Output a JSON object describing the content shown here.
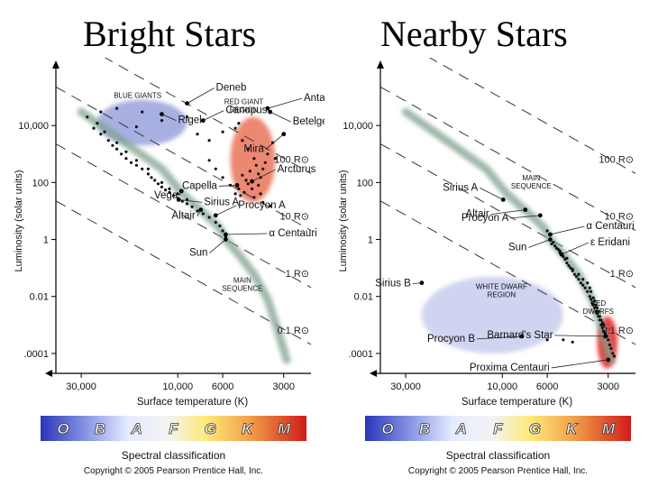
{
  "panels": [
    {
      "title": "Bright Stars"
    },
    {
      "title": "Nearby Stars"
    }
  ],
  "chart_data": [
    {
      "type": "scatter",
      "title": "Bright Stars",
      "xlabel": "Surface temperature (K)",
      "ylabel": "Luminosity (solar units)",
      "x_scale": "log-reversed",
      "y_scale": "log",
      "xlim": [
        40000,
        2200
      ],
      "ylim": [
        2e-05,
        1000000
      ],
      "x_ticks": [
        {
          "value": 30000,
          "label": "30,000"
        },
        {
          "value": 10000,
          "label": "10,000"
        },
        {
          "value": 6000,
          "label": "6000"
        },
        {
          "value": 3000,
          "label": "3000"
        }
      ],
      "y_ticks": [
        {
          "value": 10000,
          "label": "10,000"
        },
        {
          "value": 100,
          "label": "100"
        },
        {
          "value": 1,
          "label": "1"
        },
        {
          "value": 0.01,
          "label": "0.01"
        },
        {
          "value": 0.0001,
          "label": ".0001"
        }
      ],
      "radius_lines": [
        {
          "label": "100 R⊙",
          "r": 100
        },
        {
          "label": "10 R⊙",
          "r": 10
        },
        {
          "label": "1 R⊙",
          "r": 1
        },
        {
          "label": "0.1 R⊙",
          "r": 0.1
        }
      ],
      "regions": [
        {
          "label": "BLUE GIANTS",
          "color": "#9aa3dd",
          "x": [
            25000,
            9000
          ],
          "y": [
            2000,
            80000
          ]
        },
        {
          "label": "RED GIANT REGION",
          "color": "#e9735a",
          "x": [
            5500,
            3300
          ],
          "y": [
            20,
            20000
          ]
        }
      ],
      "region_labels": [
        "BLUE GIANTS",
        "RED GIANT\nREGION"
      ],
      "sequence_label": "MAIN\nSEQUENCE",
      "stars": [
        {
          "name": "Deneb",
          "x": 9000,
          "y": 60000
        },
        {
          "name": "Rigel",
          "x": 12000,
          "y": 25000
        },
        {
          "name": "Canopus",
          "x": 7500,
          "y": 15000
        },
        {
          "name": "Antares",
          "x": 3600,
          "y": 40000
        },
        {
          "name": "Betelgeuse",
          "x": 3500,
          "y": 30000
        },
        {
          "name": "Mira",
          "x": 3000,
          "y": 5000
        },
        {
          "name": "Capella",
          "x": 5100,
          "y": 80
        },
        {
          "name": "Arcturus",
          "x": 4300,
          "y": 110
        },
        {
          "name": "Vega",
          "x": 9600,
          "y": 50
        },
        {
          "name": "Sirius A",
          "x": 9900,
          "y": 25
        },
        {
          "name": "Altair",
          "x": 7700,
          "y": 11
        },
        {
          "name": "Procyon A",
          "x": 6500,
          "y": 7
        },
        {
          "name": "α Centauri",
          "x": 5800,
          "y": 1.5
        },
        {
          "name": "Sun",
          "x": 5800,
          "y": 1
        }
      ],
      "points": [
        [
          28000,
          20000
        ],
        [
          26000,
          8000
        ],
        [
          24000,
          5000
        ],
        [
          22000,
          3000
        ],
        [
          21000,
          2000
        ],
        [
          20000,
          1500
        ],
        [
          19000,
          1000
        ],
        [
          18000,
          700
        ],
        [
          17000,
          500
        ],
        [
          16000,
          400
        ],
        [
          15000,
          300
        ],
        [
          14000,
          200
        ],
        [
          13500,
          150
        ],
        [
          13000,
          120
        ],
        [
          12500,
          90
        ],
        [
          12000,
          70
        ],
        [
          11500,
          55
        ],
        [
          11000,
          45
        ],
        [
          10500,
          35
        ],
        [
          10000,
          28
        ],
        [
          9500,
          22
        ],
        [
          9000,
          18
        ],
        [
          8500,
          14
        ],
        [
          8000,
          10
        ],
        [
          7500,
          8
        ],
        [
          7000,
          6
        ],
        [
          6500,
          4
        ],
        [
          6200,
          3
        ],
        [
          6000,
          2
        ],
        [
          5800,
          1.2
        ],
        [
          25000,
          12000
        ],
        [
          23000,
          6000
        ],
        [
          20000,
          2500
        ],
        [
          18000,
          1200
        ],
        [
          16000,
          600
        ],
        [
          14000,
          300
        ],
        [
          12000,
          100
        ],
        [
          11000,
          60
        ],
        [
          10000,
          40
        ],
        [
          9000,
          25
        ],
        [
          24000,
          30000
        ],
        [
          20000,
          40000
        ],
        [
          15000,
          30000
        ],
        [
          9000,
          20000
        ],
        [
          8000,
          5000
        ],
        [
          7000,
          3000
        ],
        [
          6000,
          6000
        ],
        [
          5200,
          8000
        ],
        [
          5000,
          12000
        ],
        [
          4800,
          3000
        ],
        [
          4500,
          1500
        ],
        [
          4200,
          700
        ],
        [
          4100,
          400
        ],
        [
          4000,
          200
        ],
        [
          3900,
          150
        ],
        [
          3800,
          300
        ],
        [
          3700,
          500
        ],
        [
          4400,
          250
        ],
        [
          4600,
          120
        ],
        [
          5000,
          60
        ],
        [
          4900,
          35
        ],
        [
          4700,
          45
        ],
        [
          4300,
          60
        ],
        [
          4000,
          80
        ],
        [
          3600,
          1000
        ],
        [
          3400,
          2500
        ],
        [
          3300,
          700
        ],
        [
          4200,
          30
        ],
        [
          3900,
          40
        ],
        [
          4500,
          90
        ],
        [
          5200,
          40
        ],
        [
          5500,
          80
        ],
        [
          6000,
          150
        ],
        [
          6500,
          300
        ],
        [
          7000,
          600
        ],
        [
          4800,
          180
        ],
        [
          3500,
          15
        ],
        [
          3800,
          20
        ],
        [
          12000,
          15000
        ],
        [
          16000,
          9000
        ]
      ]
    },
    {
      "type": "scatter",
      "title": "Nearby Stars",
      "xlabel": "Surface temperature (K)",
      "ylabel": "Luminosity (solar units)",
      "x_scale": "log-reversed",
      "y_scale": "log",
      "xlim": [
        40000,
        2200
      ],
      "ylim": [
        2e-05,
        1000000
      ],
      "x_ticks": [
        {
          "value": 30000,
          "label": "30,000"
        },
        {
          "value": 10000,
          "label": "10,000"
        },
        {
          "value": 6000,
          "label": "6000"
        },
        {
          "value": 3000,
          "label": "3000"
        }
      ],
      "y_ticks": [
        {
          "value": 10000,
          "label": "10,000"
        },
        {
          "value": 100,
          "label": "100"
        },
        {
          "value": 1,
          "label": "1"
        },
        {
          "value": 0.01,
          "label": "0.01"
        },
        {
          "value": 0.0001,
          "label": ".0001"
        }
      ],
      "radius_lines": [
        {
          "label": "100 R⊙",
          "r": 100
        },
        {
          "label": "10 R⊙",
          "r": 10
        },
        {
          "label": "1 R⊙",
          "r": 1
        },
        {
          "label": "0.1 R⊙",
          "r": 0.1
        }
      ],
      "regions": [
        {
          "label": "WHITE DWARF REGION",
          "color": "#c8cdee",
          "x": [
            25000,
            5000
          ],
          "y": [
            0.0001,
            0.05
          ]
        },
        {
          "label": "RED DWARFS",
          "color": "#e02525",
          "x": [
            3400,
            2700
          ],
          "y": [
            3e-05,
            0.002
          ]
        }
      ],
      "region_labels": [
        "WHITE DWARF\nREGION",
        "RED\nDWARFS"
      ],
      "sequence_label": "MAIN\nSEQUENCE",
      "stars": [
        {
          "name": "Sirius A",
          "x": 9900,
          "y": 25
        },
        {
          "name": "Altair",
          "x": 7700,
          "y": 11
        },
        {
          "name": "α Centauri",
          "x": 5800,
          "y": 1.5
        },
        {
          "name": "Procyon A",
          "x": 6500,
          "y": 7
        },
        {
          "name": "Sun",
          "x": 5800,
          "y": 1
        },
        {
          "name": "ε Eridani",
          "x": 5100,
          "y": 0.3
        },
        {
          "name": "Sirius B",
          "x": 25000,
          "y": 0.03
        },
        {
          "name": "Procyon B",
          "x": 8000,
          "y": 0.0004
        },
        {
          "name": "Barnard's Star",
          "x": 3100,
          "y": 0.0004
        },
        {
          "name": "Proxima Centauri",
          "x": 3000,
          "y": 6e-05
        }
      ],
      "points": [
        [
          5800,
          1
        ],
        [
          5600,
          0.8
        ],
        [
          5500,
          0.6
        ],
        [
          5400,
          0.5
        ],
        [
          5300,
          0.45
        ],
        [
          5200,
          0.4
        ],
        [
          5100,
          0.3
        ],
        [
          5000,
          0.25
        ],
        [
          4900,
          0.2
        ],
        [
          4800,
          0.15
        ],
        [
          4700,
          0.12
        ],
        [
          4600,
          0.1
        ],
        [
          4500,
          0.08
        ],
        [
          4400,
          0.06
        ],
        [
          4300,
          0.05
        ],
        [
          4200,
          0.04
        ],
        [
          4100,
          0.03
        ],
        [
          4000,
          0.025
        ],
        [
          3900,
          0.02
        ],
        [
          3800,
          0.015
        ],
        [
          3700,
          0.01
        ],
        [
          3650,
          0.008
        ],
        [
          3600,
          0.006
        ],
        [
          3550,
          0.005
        ],
        [
          3500,
          0.004
        ],
        [
          3450,
          0.003
        ],
        [
          3400,
          0.0025
        ],
        [
          3350,
          0.002
        ],
        [
          3300,
          0.0015
        ],
        [
          3250,
          0.001
        ],
        [
          3200,
          0.0008
        ],
        [
          3150,
          0.0006
        ],
        [
          3100,
          0.0005
        ],
        [
          3050,
          0.0004
        ],
        [
          3000,
          0.0003
        ],
        [
          2950,
          0.0002
        ],
        [
          2900,
          0.00015
        ],
        [
          2850,
          0.0001
        ],
        [
          2800,
          8e-05
        ],
        [
          3000,
          6e-05
        ],
        [
          6500,
          7
        ],
        [
          6000,
          2
        ],
        [
          5700,
          0.7
        ],
        [
          5200,
          0.35
        ],
        [
          4800,
          0.22
        ],
        [
          4500,
          0.09
        ],
        [
          4200,
          0.06
        ],
        [
          4000,
          0.04
        ],
        [
          3800,
          0.03
        ],
        [
          3700,
          0.02
        ],
        [
          3650,
          0.015
        ],
        [
          3550,
          0.009
        ],
        [
          3500,
          0.007
        ],
        [
          3450,
          0.005
        ],
        [
          3400,
          0.004
        ],
        [
          3350,
          0.003
        ],
        [
          3300,
          0.002
        ],
        [
          3250,
          0.0015
        ],
        [
          3200,
          0.0012
        ],
        [
          3150,
          0.001
        ],
        [
          6000,
          0.0003
        ],
        [
          5000,
          0.0003
        ],
        [
          4500,
          0.00025
        ]
      ]
    }
  ],
  "spectral": {
    "classes": [
      "O",
      "B",
      "A",
      "F",
      "G",
      "K",
      "M"
    ],
    "label": "Spectral classification"
  },
  "copyright": "Copyright © 2005 Pearson Prentice Hall, Inc."
}
